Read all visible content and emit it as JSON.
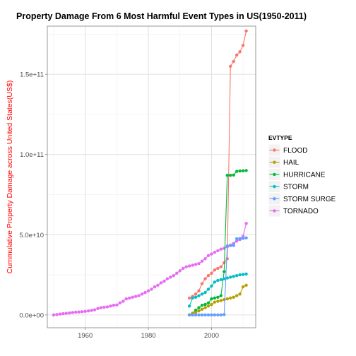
{
  "chart_data": {
    "type": "line",
    "title": "Property Damage From 6 Most Harmful Event Types in US(1950-2011)",
    "xlabel": "",
    "ylabel": "Cummulative Property Damage across United States(US$)",
    "ylabel_color": "#ff0000",
    "xlim": [
      1948,
      2014
    ],
    "ylim": [
      -8000000000.0,
      180000000000.0
    ],
    "x_ticks": [
      1960,
      1980,
      2000
    ],
    "y_ticks": [
      0,
      50000000000,
      100000000000,
      150000000000
    ],
    "x_tick_labels": [
      "1960",
      "1980",
      "2000"
    ],
    "y_tick_labels": [
      "0.0e+00",
      "5.0e+10",
      "1.0e+11",
      "1.5e+11"
    ],
    "grid": true,
    "background": "#ffffff",
    "grid_color": "#ebebeb",
    "legend": {
      "title": "EVTYPE",
      "position": "right",
      "labels": [
        "FLOOD",
        "HAIL",
        "HURRICANE",
        "STORM",
        "STORM SURGE",
        "TORNADO"
      ]
    },
    "series": [
      {
        "name": "TORNADO",
        "color": "#e76bf3",
        "x": [
          1950,
          1951,
          1952,
          1953,
          1954,
          1955,
          1956,
          1957,
          1958,
          1959,
          1960,
          1961,
          1962,
          1963,
          1964,
          1965,
          1966,
          1967,
          1968,
          1969,
          1970,
          1971,
          1972,
          1973,
          1974,
          1975,
          1976,
          1977,
          1978,
          1979,
          1980,
          1981,
          1982,
          1983,
          1984,
          1985,
          1986,
          1987,
          1988,
          1989,
          1990,
          1991,
          1992,
          1993,
          1994,
          1995,
          1996,
          1997,
          1998,
          1999,
          2000,
          2001,
          2002,
          2003,
          2004,
          2005,
          2006,
          2007,
          2008,
          2009,
          2010,
          2011
        ],
        "values": [
          0.0,
          200000000.0,
          500000000.0,
          800000000.0,
          1000000000.0,
          1200000000.0,
          1500000000.0,
          1700000000.0,
          1800000000.0,
          2000000000.0,
          2200000000.0,
          2500000000.0,
          2800000000.0,
          3200000000.0,
          4000000000.0,
          4500000000.0,
          4800000000.0,
          5000000000.0,
          5500000000.0,
          6000000000.0,
          6200000000.0,
          7500000000.0,
          8500000000.0,
          10000000000.0,
          10500000000.0,
          11000000000.0,
          11500000000.0,
          12000000000.0,
          13000000000.0,
          14000000000.0,
          15000000000.0,
          16000000000.0,
          17500000000.0,
          18500000000.0,
          20000000000.0,
          21000000000.0,
          22500000000.0,
          23500000000.0,
          24500000000.0,
          26000000000.0,
          27500000000.0,
          29000000000.0,
          30000000000.0,
          30500000000.0,
          31000000000.0,
          31500000000.0,
          32000000000.0,
          33500000000.0,
          35000000000.0,
          37000000000.0,
          38000000000.0,
          39000000000.0,
          40000000000.0,
          41000000000.0,
          41500000000.0,
          42500000000.0,
          43500000000.0,
          44500000000.0,
          46000000000.0,
          47000000000.0,
          49000000000.0,
          57000000000.0
        ]
      },
      {
        "name": "FLOOD",
        "color": "#f8766d",
        "x": [
          1993,
          1994,
          1995,
          1996,
          1997,
          1998,
          1999,
          2000,
          2001,
          2002,
          2003,
          2004,
          2005,
          2006,
          2007,
          2008,
          2009,
          2010,
          2011
        ],
        "values": [
          10500000000.0,
          11500000000.0,
          13000000000.0,
          15000000000.0,
          19500000000.0,
          22500000000.0,
          24500000000.0,
          26000000000.0,
          28000000000.0,
          29000000000.0,
          30000000000.0,
          32500000000.0,
          35000000000.0,
          155000000000.0,
          158000000000.0,
          162000000000.0,
          164000000000.0,
          168000000000.0,
          177000000000.0
        ]
      },
      {
        "name": "HURRICANE",
        "color": "#00ba38",
        "x": [
          1993,
          1994,
          1995,
          1996,
          1997,
          1998,
          1999,
          2000,
          2001,
          2002,
          2003,
          2004,
          2005,
          2006,
          2007,
          2008,
          2009,
          2010,
          2011
        ],
        "values": [
          0.0,
          1000000000.0,
          3000000000.0,
          4500000000.0,
          6000000000.0,
          6500000000.0,
          7500000000.0,
          10000000000.0,
          10500000000.0,
          11000000000.0,
          12000000000.0,
          27000000000.0,
          87000000000.0,
          87000000000.0,
          87200000000.0,
          89500000000.0,
          89700000000.0,
          89800000000.0,
          90000000000.0
        ]
      },
      {
        "name": "STORM",
        "color": "#00bfc4",
        "x": [
          1993,
          1994,
          1995,
          1996,
          1997,
          1998,
          1999,
          2000,
          2001,
          2002,
          2003,
          2004,
          2005,
          2006,
          2007,
          2008,
          2009,
          2010,
          2011
        ],
        "values": [
          5500000000.0,
          10500000000.0,
          11000000000.0,
          12000000000.0,
          13000000000.0,
          14000000000.0,
          16000000000.0,
          18000000000.0,
          20500000000.0,
          21500000000.0,
          22000000000.0,
          22500000000.0,
          23000000000.0,
          23500000000.0,
          24000000000.0,
          24500000000.0,
          25000000000.0,
          25200000000.0,
          25500000000.0
        ]
      },
      {
        "name": "HAIL",
        "color": "#b79f00",
        "x": [
          1993,
          1994,
          1995,
          1996,
          1997,
          1998,
          1999,
          2000,
          2001,
          2002,
          2003,
          2004,
          2005,
          2006,
          2007,
          2008,
          2009,
          2010,
          2011
        ],
        "values": [
          0.0,
          1000000000.0,
          1500000000.0,
          2500000000.0,
          3500000000.0,
          4500000000.0,
          5500000000.0,
          6500000000.0,
          8000000000.0,
          8500000000.0,
          9000000000.0,
          9500000000.0,
          10000000000.0,
          10500000000.0,
          11000000000.0,
          12000000000.0,
          13000000000.0,
          17500000000.0,
          18500000000.0
        ]
      },
      {
        "name": "STORM SURGE",
        "color": "#619cff",
        "x": [
          1993,
          1994,
          1995,
          1996,
          1997,
          1998,
          1999,
          2000,
          2001,
          2002,
          2003,
          2004,
          2005,
          2006,
          2007,
          2008,
          2009,
          2010,
          2011
        ],
        "values": [
          0.0,
          0.0,
          0.0,
          0.0,
          0.0,
          0.0,
          0.0,
          0.0,
          0.0,
          0.0,
          0.0,
          200000000.0,
          43000000000.0,
          43200000000.0,
          43300000000.0,
          47500000000.0,
          47600000000.0,
          47700000000.0,
          48000000000.0
        ]
      }
    ]
  }
}
